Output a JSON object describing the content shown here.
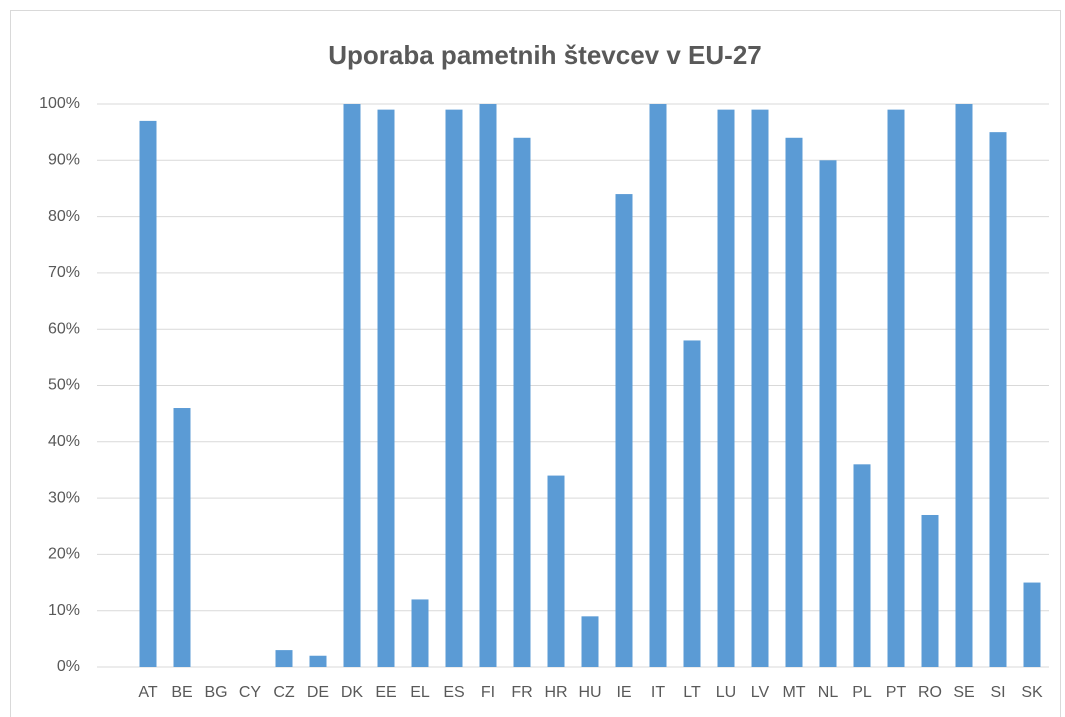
{
  "chart_data": {
    "type": "bar",
    "title": "Uporaba pametnih števcev v EU-27",
    "categories": [
      "AT",
      "BE",
      "BG",
      "CY",
      "CZ",
      "DE",
      "DK",
      "EE",
      "EL",
      "ES",
      "FI",
      "FR",
      "HR",
      "HU",
      "IE",
      "IT",
      "LT",
      "LU",
      "LV",
      "MT",
      "NL",
      "PL",
      "PT",
      "RO",
      "SE",
      "SI",
      "SK"
    ],
    "values": [
      97,
      46,
      0,
      0,
      3,
      2,
      100,
      99,
      12,
      99,
      100,
      94,
      34,
      9,
      84,
      100,
      58,
      99,
      99,
      94,
      90,
      36,
      99,
      27,
      100,
      95,
      15
    ],
    "color": "#5b9bd5",
    "ylim": [
      0,
      100
    ],
    "yticks": [
      {
        "value": 0,
        "label": "0%"
      },
      {
        "value": 10,
        "label": "10%"
      },
      {
        "value": 20,
        "label": "20%"
      },
      {
        "value": 30,
        "label": "30%"
      },
      {
        "value": 40,
        "label": "40%"
      },
      {
        "value": 50,
        "label": "50%"
      },
      {
        "value": 60,
        "label": "60%"
      },
      {
        "value": 70,
        "label": "70%"
      },
      {
        "value": 80,
        "label": "80%"
      },
      {
        "value": 90,
        "label": "90%"
      },
      {
        "value": 100,
        "label": "100%"
      }
    ],
    "grid": true
  }
}
